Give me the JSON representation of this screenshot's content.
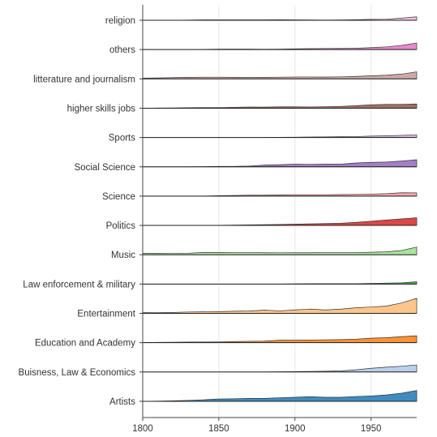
{
  "chart_data": {
    "type": "area",
    "subtype": "ridgeline",
    "title": "",
    "xlabel": "",
    "ylabel": "",
    "x": [
      1800,
      1810,
      1820,
      1830,
      1840,
      1850,
      1860,
      1870,
      1880,
      1890,
      1900,
      1910,
      1920,
      1930,
      1940,
      1950,
      1960,
      1970,
      1980
    ],
    "xlim": [
      1800,
      1980
    ],
    "x_ticks": [
      1800,
      1850,
      1900,
      1950
    ],
    "value_unit": "relative density (0-1 scale)",
    "grid": "vertical",
    "legend": "none",
    "series": [
      {
        "name": "religion",
        "color": "#f7b6d2",
        "values": [
          0.0,
          0.0,
          0.0,
          0.03,
          0.06,
          0.06,
          0.06,
          0.05,
          0.06,
          0.07,
          0.06,
          0.04,
          0.03,
          0.04,
          0.07,
          0.12,
          0.14,
          0.28,
          0.45
        ]
      },
      {
        "name": "others",
        "color": "#e377c2",
        "values": [
          0.0,
          0.0,
          0.0,
          0.0,
          0.02,
          0.06,
          0.06,
          0.06,
          0.05,
          0.06,
          0.1,
          0.12,
          0.14,
          0.15,
          0.18,
          0.25,
          0.35,
          0.55,
          0.85
        ]
      },
      {
        "name": "litterature and journalism",
        "color": "#c49c94",
        "values": [
          0.1,
          0.12,
          0.16,
          0.2,
          0.22,
          0.22,
          0.2,
          0.18,
          0.2,
          0.22,
          0.25,
          0.25,
          0.24,
          0.26,
          0.32,
          0.4,
          0.48,
          0.62,
          0.92
        ]
      },
      {
        "name": "higher skills jobs",
        "color": "#8c564b",
        "values": [
          0.0,
          0.02,
          0.04,
          0.06,
          0.08,
          0.08,
          0.12,
          0.15,
          0.14,
          0.18,
          0.18,
          0.16,
          0.2,
          0.24,
          0.32,
          0.45,
          0.5,
          0.5,
          0.55
        ]
      },
      {
        "name": "Sports",
        "color": "#c5b0d5",
        "values": [
          0.0,
          0.0,
          0.0,
          0.0,
          0.0,
          0.0,
          0.0,
          0.0,
          0.0,
          0.02,
          0.04,
          0.06,
          0.08,
          0.1,
          0.12,
          0.18,
          0.22,
          0.28,
          0.32
        ]
      },
      {
        "name": "Social Science",
        "color": "#9467bd",
        "values": [
          0.0,
          0.0,
          0.0,
          0.0,
          0.02,
          0.06,
          0.06,
          0.1,
          0.22,
          0.28,
          0.35,
          0.32,
          0.34,
          0.34,
          0.5,
          0.58,
          0.62,
          0.75,
          0.92
        ]
      },
      {
        "name": "Science",
        "color": "#ff9896",
        "values": [
          0.0,
          0.0,
          0.0,
          0.0,
          0.0,
          0.06,
          0.08,
          0.12,
          0.12,
          0.16,
          0.18,
          0.18,
          0.18,
          0.2,
          0.22,
          0.26,
          0.32,
          0.44,
          0.42
        ]
      },
      {
        "name": "Politics",
        "color": "#d62728",
        "values": [
          0.0,
          0.0,
          0.0,
          0.0,
          0.0,
          0.02,
          0.05,
          0.08,
          0.1,
          0.12,
          0.16,
          0.2,
          0.24,
          0.28,
          0.4,
          0.55,
          0.7,
          0.85,
          1.0
        ]
      },
      {
        "name": "Music",
        "color": "#98df8a",
        "values": [
          0.2,
          0.18,
          0.16,
          0.2,
          0.3,
          0.3,
          0.28,
          0.28,
          0.26,
          0.25,
          0.26,
          0.26,
          0.28,
          0.28,
          0.28,
          0.32,
          0.38,
          0.55,
          1.0
        ]
      },
      {
        "name": "Law enforcement & military",
        "color": "#2ca02c",
        "values": [
          0.0,
          0.0,
          0.0,
          0.0,
          0.0,
          0.0,
          0.0,
          0.0,
          0.0,
          0.0,
          0.02,
          0.04,
          0.04,
          0.04,
          0.04,
          0.08,
          0.12,
          0.16,
          0.3
        ]
      },
      {
        "name": "Entertainment",
        "color": "#ffbb78",
        "values": [
          0.1,
          0.08,
          0.12,
          0.18,
          0.2,
          0.22,
          0.28,
          0.3,
          0.42,
          0.32,
          0.45,
          0.55,
          0.45,
          0.55,
          0.72,
          0.82,
          0.95,
          1.35,
          1.95
        ]
      },
      {
        "name": "Education and Academy",
        "color": "#ff7f0e",
        "values": [
          0.02,
          0.04,
          0.06,
          0.08,
          0.08,
          0.1,
          0.15,
          0.18,
          0.2,
          0.32,
          0.32,
          0.35,
          0.38,
          0.4,
          0.45,
          0.58,
          0.65,
          0.78,
          0.9
        ]
      },
      {
        "name": "Buisness, Law & Economics",
        "color": "#aec7e8",
        "values": [
          0.0,
          0.0,
          0.0,
          0.0,
          0.0,
          0.0,
          0.0,
          0.0,
          0.0,
          0.02,
          0.05,
          0.08,
          0.1,
          0.14,
          0.28,
          0.48,
          0.62,
          0.75,
          0.92
        ]
      },
      {
        "name": "Artists",
        "color": "#1f77b4",
        "values": [
          0.0,
          0.02,
          0.06,
          0.12,
          0.2,
          0.3,
          0.32,
          0.38,
          0.38,
          0.46,
          0.52,
          0.6,
          0.52,
          0.52,
          0.62,
          0.7,
          0.82,
          1.05,
          1.4
        ]
      }
    ]
  }
}
